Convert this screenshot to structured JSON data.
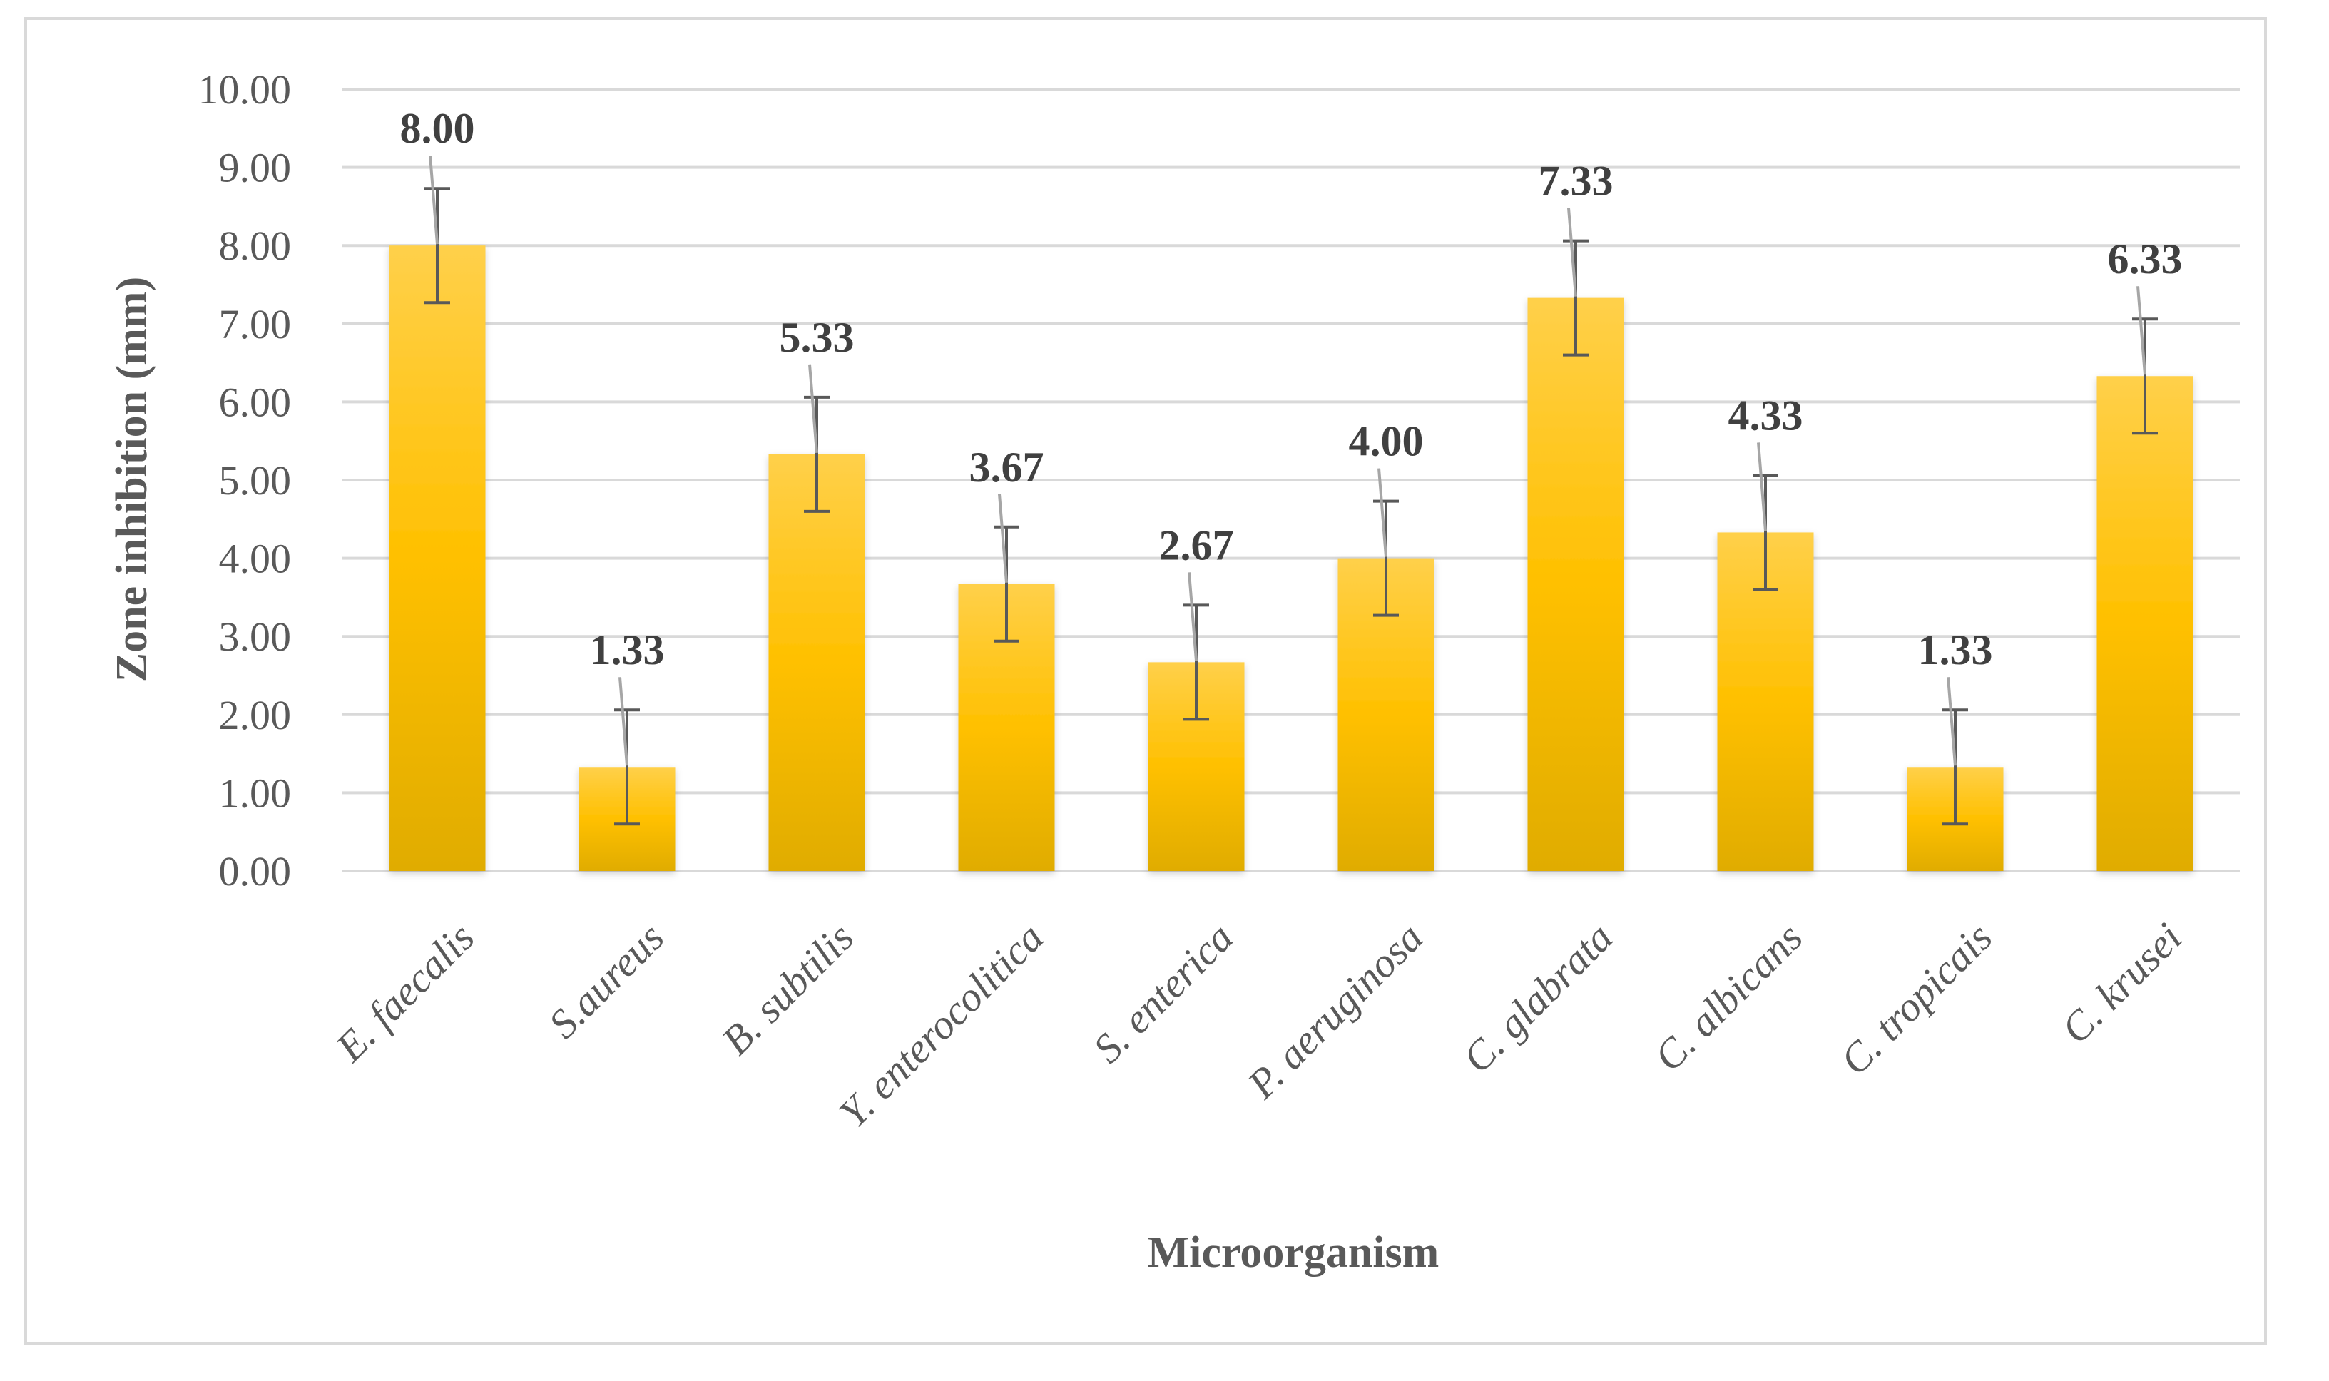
{
  "chart_data": {
    "type": "bar",
    "title": "",
    "xlabel": "Microorganism",
    "ylabel": "Zone inhibition (mm)",
    "ylim": [
      0,
      10
    ],
    "ytick_step": 1,
    "ytick_labels": [
      "0.00",
      "1.00",
      "2.00",
      "3.00",
      "4.00",
      "5.00",
      "6.00",
      "7.00",
      "8.00",
      "9.00",
      "10.00"
    ],
    "grid": true,
    "categories": [
      "E. faecalis",
      "S.aureus",
      "B. subtilis",
      "Y. enterocolitica",
      "S. enterica",
      "P. aeruginosa",
      "C. glabrata",
      "C. albicans",
      "C. tropicais",
      "C. krusei"
    ],
    "values": [
      8.0,
      1.33,
      5.33,
      3.67,
      2.67,
      4.0,
      7.33,
      4.33,
      1.33,
      6.33
    ],
    "value_labels": [
      "8.00",
      "1.33",
      "5.33",
      "3.67",
      "2.67",
      "4.00",
      "7.33",
      "4.33",
      "1.33",
      "6.33"
    ],
    "error": [
      0.73,
      0.73,
      0.73,
      0.73,
      0.73,
      0.73,
      0.73,
      0.73,
      0.73,
      0.73
    ],
    "colors": {
      "bar_top": "#ffd04a",
      "bar_mid": "#ffc000",
      "bar_bottom": "#e0ac00",
      "gridline": "#d9d9d9",
      "error_bar": "#595959",
      "leader_line": "#a6a6a6"
    }
  }
}
